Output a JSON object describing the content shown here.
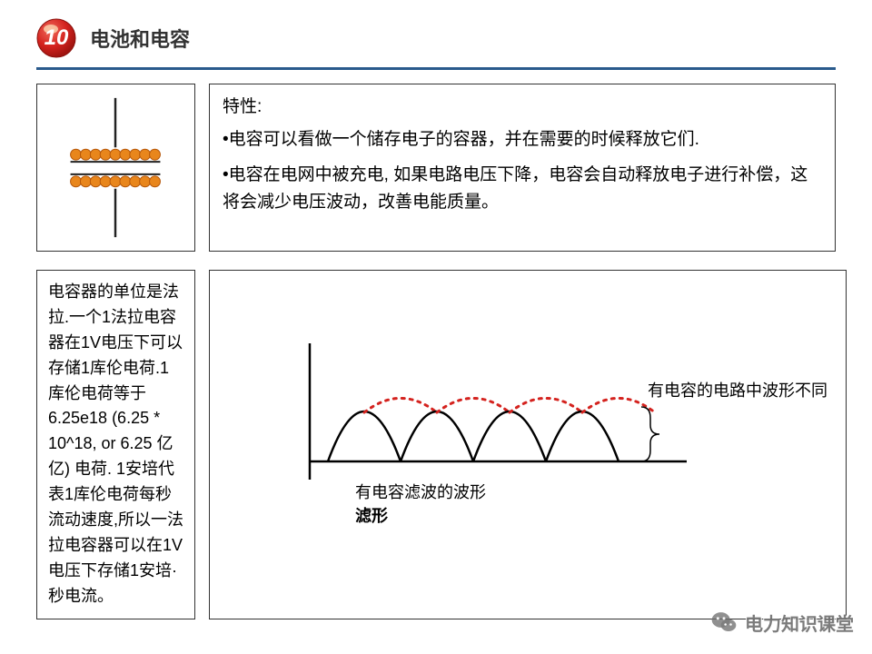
{
  "header": {
    "badge_number": "10",
    "badge_bg": "#d4221e",
    "badge_highlight": "#ffdfa8",
    "title": "电池和电容"
  },
  "divider_color": "#2a5a8c",
  "capacitor_diagram": {
    "lead_color": "#222222",
    "electron_fill": "#e8861c",
    "electron_stroke": "#b55608",
    "electron_count": 9,
    "electron_radius": 6
  },
  "properties": {
    "heading": "特性:",
    "items": [
      "•电容可以看做一个储存电子的容器，并在需要的时候释放它们.",
      "•电容在电网中被充电, 如果电路电压下降，电容会自动释放电子进行补偿，这将会减少电压波动，改善电能质量。"
    ]
  },
  "farad_text": "电容器的单位是法拉.一个1法拉电容器在1V电压下可以存储1库伦电荷.1库伦电荷等于6.25e18 (6.25 * 10^18, or 6.25 亿亿) 电荷. 1安培代表1库伦电荷每秒流动速度,所以一法拉电容器可以在1V电压下存储1安培·秒电流。",
  "waveform": {
    "axis_color": "#000000",
    "solid_color": "#000000",
    "dotted_color": "#d4221e",
    "arc_count": 4,
    "arc_width": 80,
    "arc_height": 55,
    "caption_line1": "有电容滤波的波形",
    "caption_line2": "滤形",
    "side_text": "有电容的电路中波形不同"
  },
  "watermark": {
    "text": "电力知识课堂",
    "icon_color": "#6e6e6e"
  }
}
